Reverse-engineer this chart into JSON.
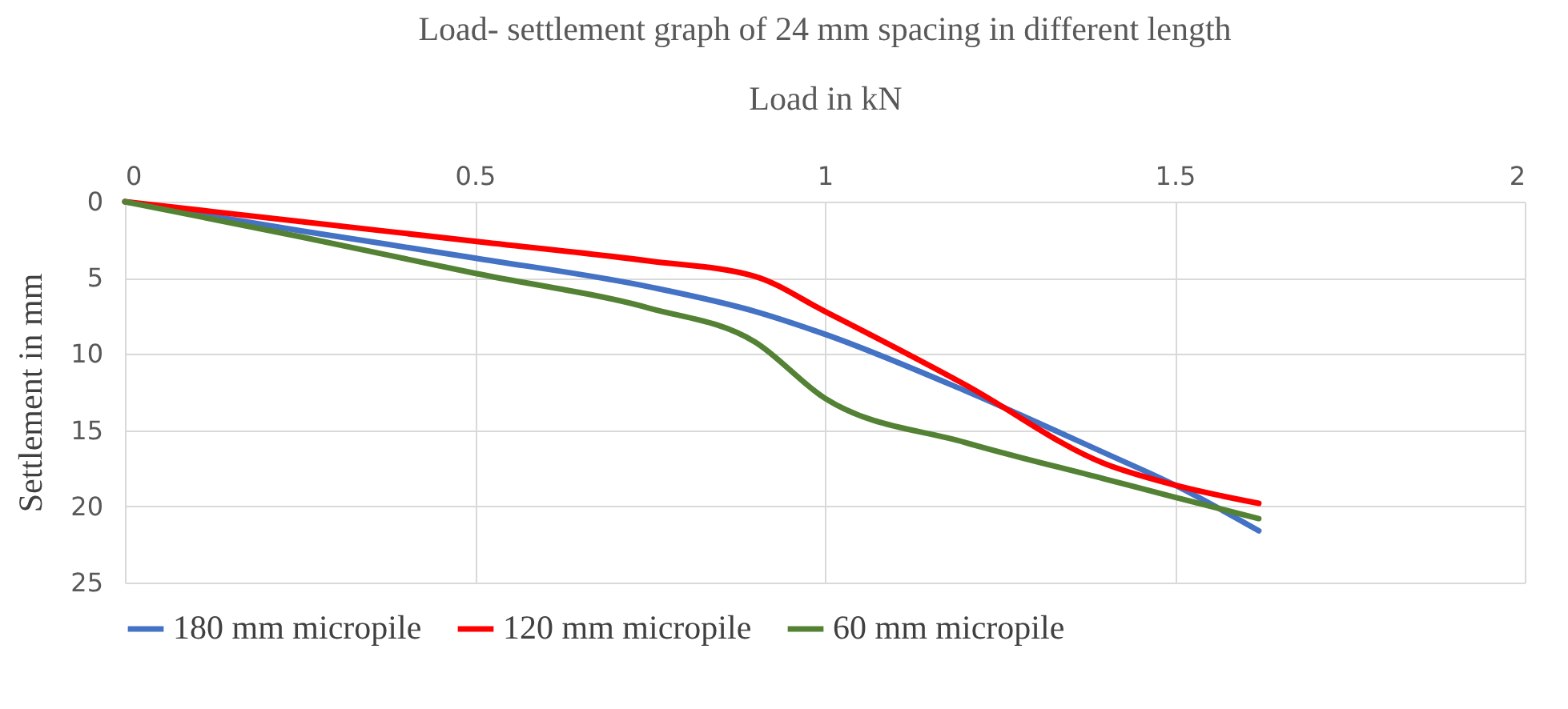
{
  "chart_data": {
    "type": "line",
    "title": "Load- settlement graph of 24 mm spacing in different length",
    "xlabel": "Load in kN",
    "ylabel": "Settlement in mm",
    "x": [
      0,
      0.25,
      0.5,
      0.75,
      0.9,
      1.0,
      1.2,
      1.4,
      1.5,
      1.62
    ],
    "series": [
      {
        "name": "180 mm micropile",
        "color": "#4472c4",
        "values": [
          0,
          1.9,
          3.7,
          5.6,
          7.2,
          8.7,
          12.4,
          16.5,
          18.6,
          21.6
        ]
      },
      {
        "name": "120 mm micropile",
        "color": "#ff0000",
        "values": [
          0,
          1.3,
          2.6,
          3.9,
          4.9,
          7.2,
          12.0,
          17.2,
          18.6,
          19.8
        ]
      },
      {
        "name": "60 mm micropile",
        "color": "#548235",
        "values": [
          0,
          2.3,
          4.7,
          7.0,
          9.2,
          12.9,
          15.8,
          18.2,
          19.4,
          20.8
        ]
      }
    ],
    "xlim": [
      0,
      2
    ],
    "xticks": [
      0,
      0.5,
      1,
      1.5,
      2
    ],
    "ylim": [
      25,
      0
    ],
    "yticks": [
      0,
      5,
      10,
      15,
      20,
      25
    ],
    "grid": true,
    "legend": "bottom",
    "marker": "none",
    "line_style": "solid"
  }
}
